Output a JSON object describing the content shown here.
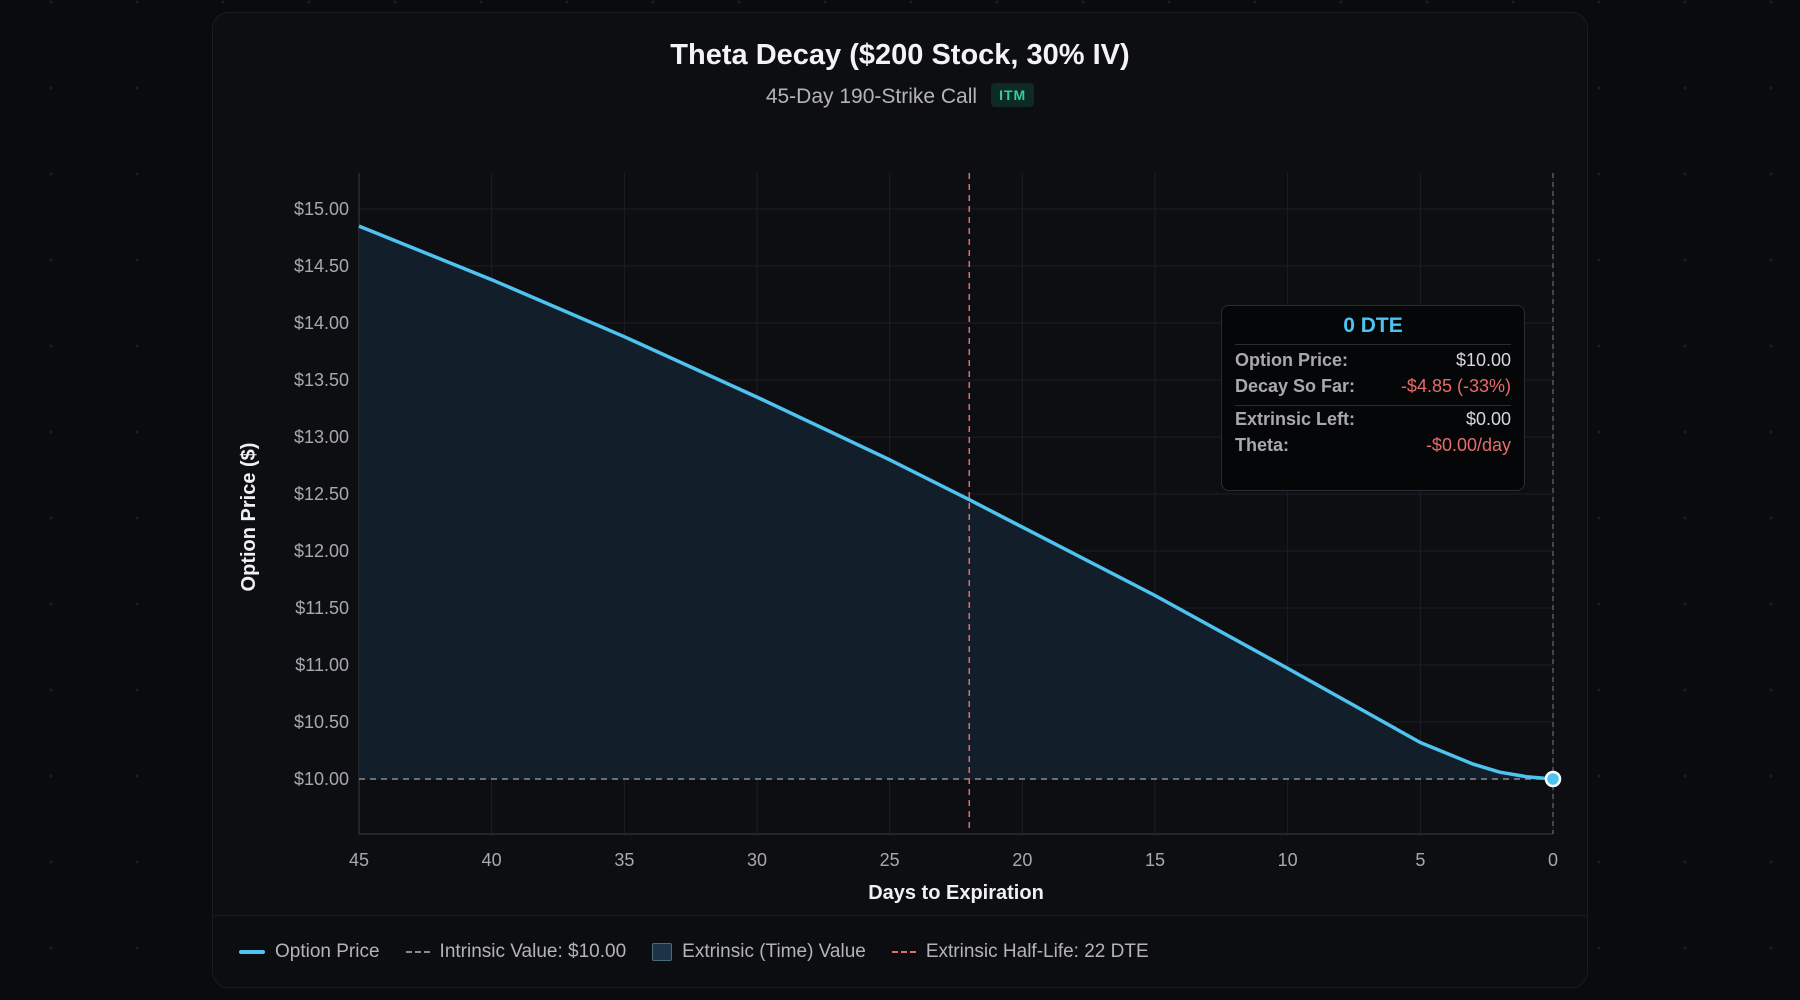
{
  "colors": {
    "line": "#4fc3f0",
    "fill": "#13202d",
    "intrinsic": "#8a8c92",
    "half_life": "#e86a6a",
    "grid": "#1d1f25",
    "badge": "#2fd39a"
  },
  "header": {
    "title": "Theta Decay ($200 Stock, 30% IV)",
    "subtitle": "45-Day 190-Strike Call",
    "badge": "ITM"
  },
  "tooltip": {
    "title": "0 DTE",
    "rows": [
      {
        "label": "Option Price:",
        "value": "$10.00",
        "tone": "normal"
      },
      {
        "label": "Decay So Far:",
        "value": "-$4.85 (-33%)",
        "tone": "negative"
      },
      {
        "label": "Extrinsic Left:",
        "value": "$0.00",
        "tone": "normal"
      },
      {
        "label": "Theta:",
        "value": "-$0.00/day",
        "tone": "negative"
      }
    ]
  },
  "legend": [
    {
      "label": "Option Price",
      "type": "line"
    },
    {
      "label": "Intrinsic Value: $10.00",
      "type": "dash"
    },
    {
      "label": "Extrinsic (Time) Value",
      "type": "box"
    },
    {
      "label": "Extrinsic Half-Life: 22 DTE",
      "type": "dash-red"
    }
  ],
  "chart_data": {
    "type": "area",
    "xlabel": "Days to Expiration",
    "ylabel": "Option Price ($)",
    "xlim": [
      45,
      0
    ],
    "ylim": [
      9.7,
      15.3
    ],
    "x_reversed": true,
    "grid": true,
    "x_ticks": [
      45,
      40,
      35,
      30,
      25,
      20,
      15,
      10,
      5,
      0
    ],
    "y_ticks": [
      "$10.00",
      "$10.50",
      "$11.00",
      "$11.50",
      "$12.00",
      "$12.50",
      "$13.00",
      "$13.50",
      "$14.00",
      "$14.50",
      "$15.00"
    ],
    "y_tick_values": [
      10,
      10.5,
      11,
      11.5,
      12,
      12.5,
      13,
      13.5,
      14,
      14.5,
      15
    ],
    "series": [
      {
        "name": "Option Price",
        "x": [
          45,
          40,
          35,
          30,
          25,
          22,
          20,
          15,
          10,
          5,
          3,
          2,
          1,
          0
        ],
        "y": [
          14.85,
          14.38,
          13.88,
          13.35,
          12.8,
          12.45,
          12.21,
          11.61,
          10.97,
          10.32,
          10.13,
          10.06,
          10.02,
          10.0
        ]
      }
    ],
    "intrinsic_value": 10.0,
    "half_life_dte": 22,
    "highlight_point": {
      "x": 0,
      "y": 10.0
    }
  }
}
